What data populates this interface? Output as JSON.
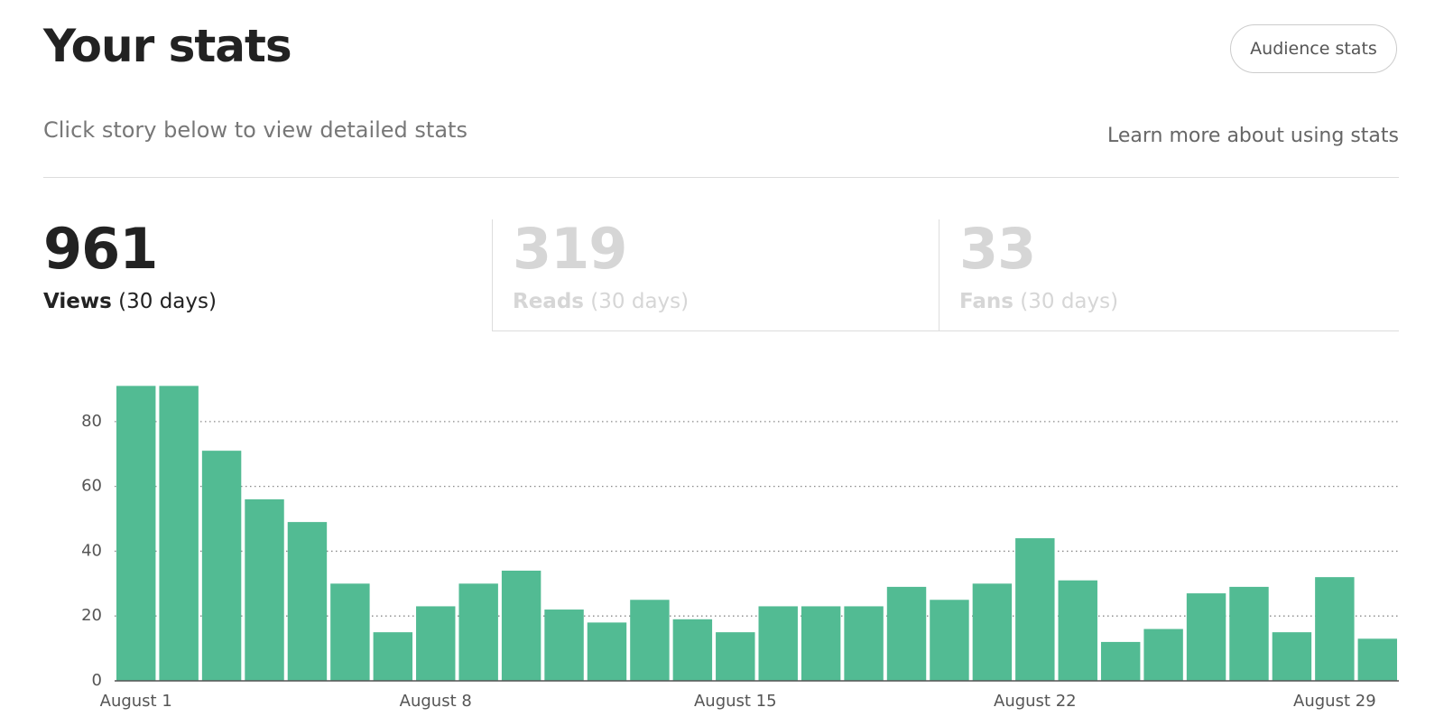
{
  "header": {
    "title": "Your stats",
    "button": "Audience stats",
    "subtitle": "Click story below to view detailed stats",
    "link": "Learn more about using stats"
  },
  "tabs": [
    {
      "value": 961,
      "label": "Views",
      "period": "(30 days)"
    },
    {
      "value": 319,
      "label": "Reads",
      "period": "(30 days)"
    },
    {
      "value": 33,
      "label": "Fans",
      "period": "(30 days)"
    }
  ],
  "chart_data": {
    "type": "bar",
    "categories": [
      "August 1",
      null,
      null,
      null,
      null,
      null,
      null,
      "August 8",
      null,
      null,
      null,
      null,
      null,
      null,
      "August 15",
      null,
      null,
      null,
      null,
      null,
      null,
      "August 22",
      null,
      null,
      null,
      null,
      null,
      null,
      "August 29",
      null
    ],
    "values": [
      91,
      91,
      71,
      56,
      49,
      30,
      15,
      23,
      30,
      34,
      22,
      18,
      25,
      19,
      15,
      23,
      23,
      23,
      29,
      25,
      30,
      44,
      31,
      12,
      16,
      27,
      29,
      15,
      32,
      13
    ],
    "color": "#52bb93",
    "ylim": [
      0,
      95
    ],
    "yticks": [
      0,
      20,
      40,
      60,
      80
    ],
    "grid": true
  }
}
